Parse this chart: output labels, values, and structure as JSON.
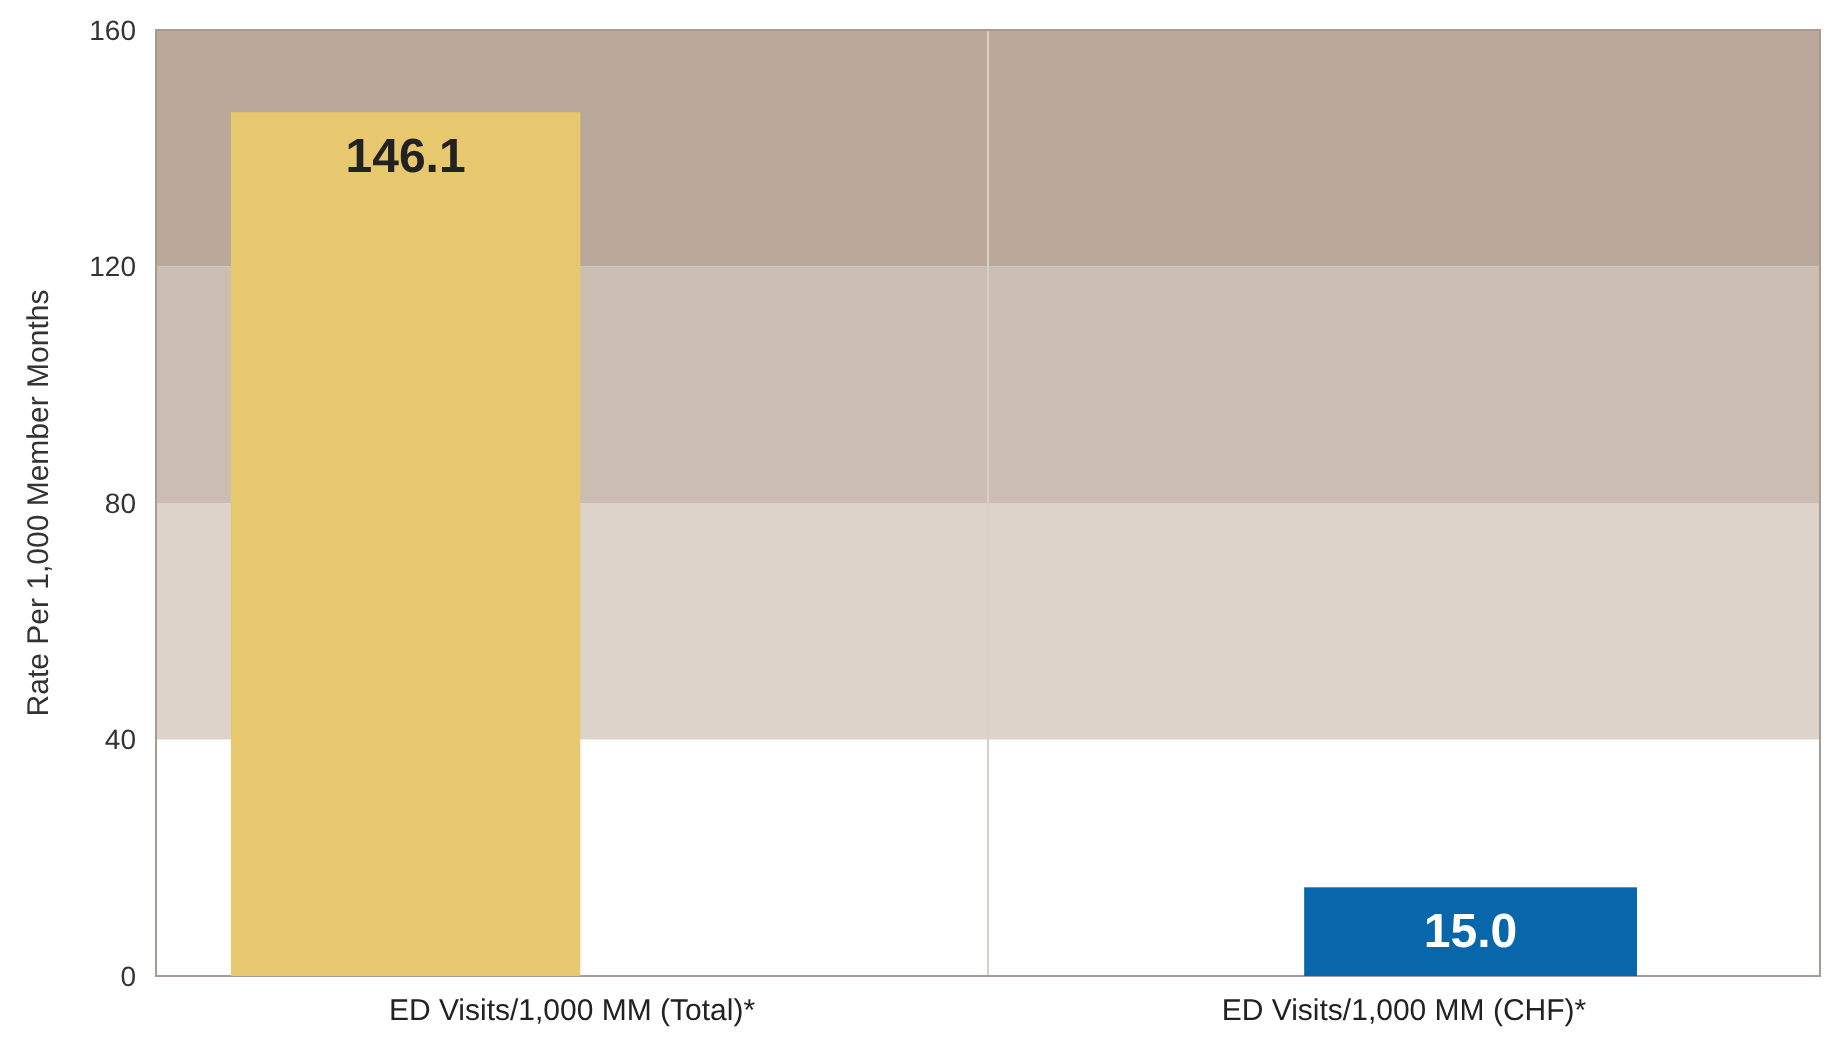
{
  "chart_data": {
    "type": "bar",
    "ylabel": "Rate Per 1,000 Member Months",
    "categories": [
      "ED Visits/1,000 MM (Total)*",
      "ED Visits/1,000 MM (CHF)*"
    ],
    "values": [
      146.1,
      15.0
    ],
    "colors": [
      "#e8c86e",
      "#0866aa"
    ],
    "ylim": [
      0,
      160
    ],
    "yticks": [
      0,
      40,
      80,
      120,
      160
    ],
    "value_labels": [
      "146.1",
      "15.0"
    ],
    "bands": [
      {
        "axis": "y",
        "from": 40,
        "to": 80,
        "color": "#ddd3cb"
      },
      {
        "axis": "y",
        "from": 80,
        "to": 120,
        "color": "#cbbdb2"
      },
      {
        "axis": "y",
        "from": 120,
        "to": 160,
        "color": "#baa89a"
      }
    ]
  }
}
